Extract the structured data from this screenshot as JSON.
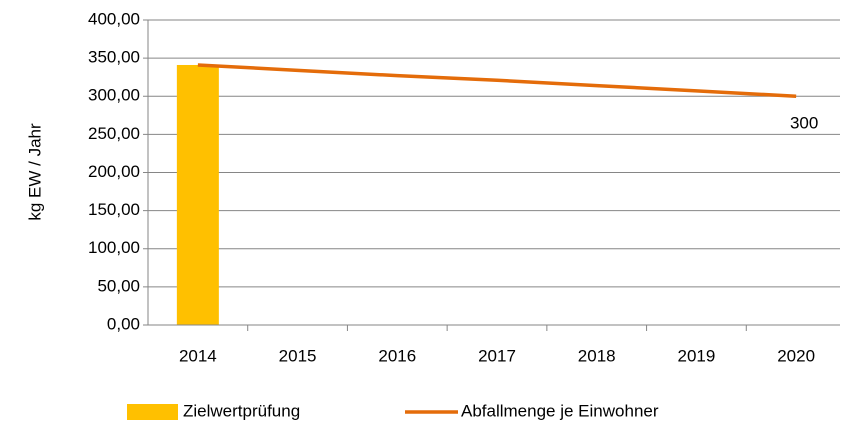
{
  "chart_data": {
    "type": "bar-line",
    "y_label": "kg EW / Jahr",
    "categories": [
      "2014",
      "2015",
      "2016",
      "2017",
      "2018",
      "2019",
      "2020"
    ],
    "series": [
      {
        "name": "Zielwertprüfung",
        "type": "bar",
        "color": "#ffc000",
        "values": [
          341,
          null,
          null,
          null,
          null,
          null,
          null
        ]
      },
      {
        "name": "Abfallmenge je Einwohner",
        "type": "line",
        "color": "#e46c0a",
        "values": [
          341,
          334,
          327,
          321,
          314,
          307,
          300
        ],
        "value_labels": [
          null,
          null,
          null,
          null,
          null,
          null,
          "300"
        ]
      }
    ],
    "ylim": [
      0,
      400
    ],
    "yticks": [
      {
        "value": 0,
        "label": "0,00"
      },
      {
        "value": 50,
        "label": "50,00"
      },
      {
        "value": 100,
        "label": "100,00"
      },
      {
        "value": 150,
        "label": "150,00"
      },
      {
        "value": 200,
        "label": "200,00"
      },
      {
        "value": 250,
        "label": "250,00"
      },
      {
        "value": 300,
        "label": "300,00"
      },
      {
        "value": 350,
        "label": "350,00"
      },
      {
        "value": 400,
        "label": "400,00"
      }
    ],
    "grid": true,
    "legend": "bottom"
  }
}
